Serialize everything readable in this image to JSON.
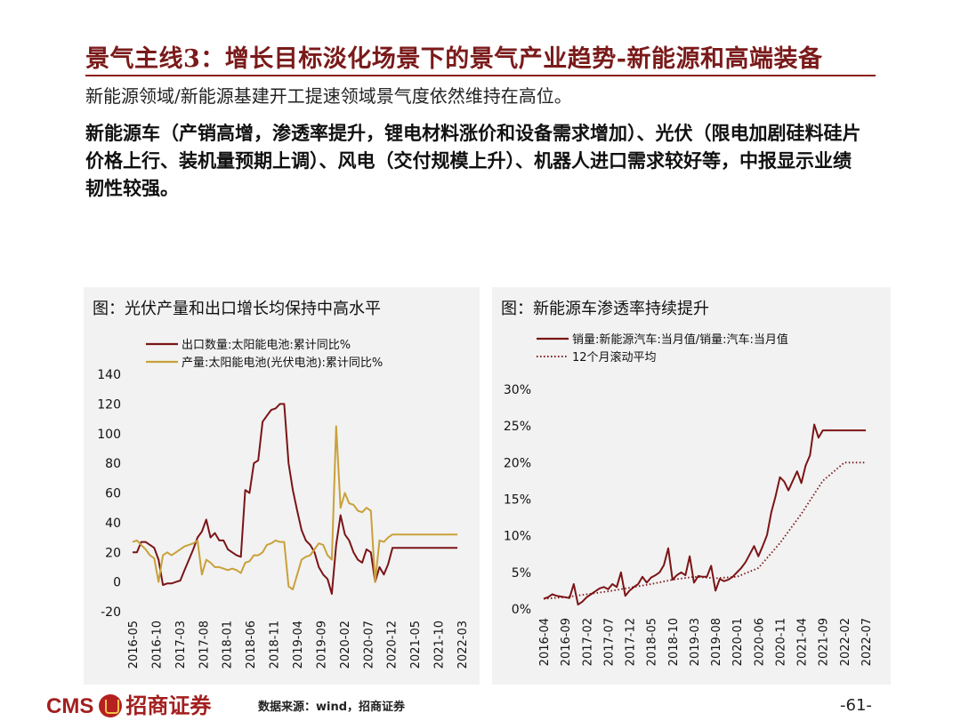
{
  "slide": {
    "title": "景气主线3：增长目标淡化场景下的景气产业趋势-新能源和高端装备",
    "subtitle": "新能源领域/新能源基建开工提速领域景气度依然维持在高位。",
    "body": "新能源车（产销高增，渗透率提升，锂电材料涨价和设备需求增加）、光伏（限电加剧硅料硅片价格上行、装机量预期上调）、风电（交付规模上升）、机器人进口需求较好等，中报显示业绩韧性较强。"
  },
  "footer": {
    "logo_text": "CMS",
    "logo_cn": "招商证券",
    "source": "数据来源：wind，招商证券",
    "page": "-61-"
  },
  "colors": {
    "title": "#7a1a1a",
    "rule": "#8b1a1a",
    "series_dark": "#7b1416",
    "series_gold": "#c9a13a",
    "panel_bg": "#f2f2f2"
  },
  "chart_data": [
    {
      "type": "line",
      "title": "图：光伏产量和出口增长均保持中高水平",
      "x_ticks": [
        "2016-05",
        "2016-10",
        "2017-03",
        "2017-08",
        "2018-01",
        "2018-06",
        "2018-11",
        "2019-04",
        "2019-09",
        "2020-02",
        "2020-07",
        "2020-12",
        "2021-05",
        "2021-10",
        "2022-03"
      ],
      "x_range": [
        0,
        76
      ],
      "ylim": [
        -20,
        140
      ],
      "yticks": [
        -20,
        0,
        20,
        40,
        60,
        80,
        100,
        120,
        140
      ],
      "ytick_labels": [
        "-20",
        "0",
        "20",
        "40",
        "60",
        "80",
        "100",
        "120",
        "140"
      ],
      "legend_position": "top-left",
      "series": [
        {
          "name": "出口数量:太阳能电池:累计同比%",
          "color": "#7b1416",
          "style": "solid",
          "x": [
            0,
            1,
            2,
            3,
            4,
            5,
            6,
            7,
            8,
            9,
            10,
            11,
            12,
            13,
            14,
            15,
            16,
            17,
            18,
            19,
            20,
            21,
            22,
            23,
            24,
            25,
            26,
            27,
            28,
            29,
            30,
            31,
            32,
            33,
            34,
            35,
            36,
            37,
            38,
            39,
            40,
            41,
            42,
            43,
            44,
            45,
            46,
            47,
            48,
            49,
            50,
            51,
            52,
            53,
            54,
            55,
            56,
            57,
            58,
            59,
            60,
            61,
            62,
            63,
            64,
            65,
            66,
            67,
            68,
            69,
            70,
            71,
            72,
            73,
            74,
            75
          ],
          "values": [
            20,
            20,
            27,
            27,
            25,
            23,
            15,
            -2,
            -1,
            -1,
            0,
            1,
            8,
            15,
            22,
            30,
            34,
            42,
            30,
            33,
            28,
            28,
            22,
            20,
            18,
            17,
            62,
            60,
            80,
            82,
            108,
            112,
            116,
            117,
            120,
            120,
            80,
            62,
            48,
            35,
            28,
            25,
            20,
            10,
            5,
            2,
            -8,
            25,
            45,
            32,
            28,
            20,
            15,
            13,
            22,
            20,
            0,
            10,
            5,
            12,
            23,
            23,
            23,
            23,
            23,
            23,
            23,
            23,
            23,
            23,
            23,
            23,
            23,
            23,
            23,
            23
          ]
        },
        {
          "name": "产量:太阳能电池(光伏电池):累计同比%",
          "color": "#c9a13a",
          "style": "solid",
          "x": [
            0,
            1,
            2,
            3,
            4,
            5,
            6,
            7,
            8,
            9,
            10,
            11,
            12,
            13,
            14,
            15,
            16,
            17,
            18,
            19,
            20,
            21,
            22,
            23,
            24,
            25,
            26,
            27,
            28,
            29,
            30,
            31,
            32,
            33,
            34,
            35,
            36,
            37,
            38,
            39,
            40,
            41,
            42,
            43,
            44,
            45,
            46,
            47,
            48,
            49,
            50,
            51,
            52,
            53,
            54,
            55,
            56,
            57,
            58,
            59,
            60,
            61,
            62,
            63,
            64,
            65,
            66,
            67,
            68,
            69,
            70,
            71,
            72,
            73,
            74,
            75
          ],
          "values": [
            27,
            28,
            25,
            22,
            18,
            16,
            0,
            18,
            20,
            18,
            20,
            22,
            24,
            25,
            26,
            28,
            5,
            15,
            13,
            10,
            10,
            9,
            8,
            9,
            8,
            6,
            13,
            14,
            18,
            18,
            20,
            25,
            26,
            28,
            27,
            27,
            -3,
            -5,
            5,
            15,
            17,
            18,
            22,
            26,
            25,
            18,
            15,
            105,
            50,
            60,
            53,
            52,
            48,
            47,
            50,
            48,
            0,
            28,
            27,
            30,
            32,
            32,
            32,
            32,
            32,
            32,
            32,
            32,
            32,
            32,
            32,
            32,
            32,
            32,
            32,
            32
          ]
        }
      ]
    },
    {
      "type": "line",
      "title": "图：新能源车渗透率持续提升",
      "x_ticks": [
        "2016-04",
        "2016-09",
        "2017-02",
        "2017-07",
        "2017-12",
        "2018-05",
        "2018-10",
        "2019-03",
        "2019-08",
        "2020-01",
        "2020-06",
        "2020-11",
        "2021-04",
        "2021-09",
        "2022-02",
        "2022-07"
      ],
      "x_range": [
        0,
        75
      ],
      "ylim": [
        0,
        30
      ],
      "yticks": [
        0,
        5,
        10,
        15,
        20,
        25,
        30
      ],
      "ytick_labels": [
        "0%",
        "5%",
        "10%",
        "15%",
        "20%",
        "25%",
        "30%"
      ],
      "legend_position": "top",
      "series": [
        {
          "name": "销量:新能源汽车:当月值/销量:汽车:当月值",
          "color": "#7b1416",
          "style": "solid",
          "x": [
            0,
            1,
            2,
            3,
            4,
            5,
            6,
            7,
            8,
            9,
            10,
            11,
            12,
            13,
            14,
            15,
            16,
            17,
            18,
            19,
            20,
            21,
            22,
            23,
            24,
            25,
            26,
            27,
            28,
            29,
            30,
            31,
            32,
            33,
            34,
            35,
            36,
            37,
            38,
            39,
            40,
            41,
            42,
            43,
            44,
            45,
            46,
            47,
            48,
            49,
            50,
            51,
            52,
            53,
            54,
            55,
            56,
            57,
            58,
            59,
            60,
            61,
            62,
            63,
            64,
            65,
            66,
            67,
            68,
            69,
            70,
            71,
            72,
            73,
            74,
            75
          ],
          "values": [
            1.4,
            1.6,
            2.0,
            1.8,
            1.7,
            1.6,
            1.5,
            3.4,
            0.6,
            1.0,
            1.6,
            2.0,
            2.4,
            2.8,
            3.0,
            2.7,
            3.4,
            3.0,
            5.0,
            1.8,
            2.5,
            3.0,
            3.4,
            4.4,
            3.6,
            4.3,
            4.6,
            5.0,
            6.0,
            8.3,
            4.0,
            4.6,
            5.0,
            4.6,
            7.2,
            3.6,
            4.5,
            4.4,
            4.4,
            5.9,
            2.5,
            4.1,
            3.8,
            4.0,
            4.4,
            5.0,
            5.6,
            6.4,
            7.5,
            8.6,
            7.2,
            8.6,
            10.1,
            13.2,
            15.4,
            18.0,
            17.4,
            16.2,
            17.5,
            18.8,
            17.2,
            19.6,
            21.0,
            25.2,
            23.4,
            24.4,
            24.4,
            24.4,
            24.4,
            24.4,
            24.4,
            24.4,
            24.4,
            24.4,
            24.4,
            24.4
          ]
        },
        {
          "name": "12个月滚动平均",
          "color": "#7b1416",
          "style": "dotted",
          "x": [
            0,
            5,
            10,
            15,
            20,
            25,
            30,
            35,
            40,
            45,
            50,
            55,
            60,
            65,
            70,
            75
          ],
          "values": [
            1.4,
            1.6,
            2.0,
            2.4,
            2.9,
            3.4,
            4.0,
            4.4,
            4.2,
            4.4,
            5.6,
            9.0,
            13.0,
            17.5,
            20.0,
            20.0
          ]
        }
      ]
    }
  ]
}
